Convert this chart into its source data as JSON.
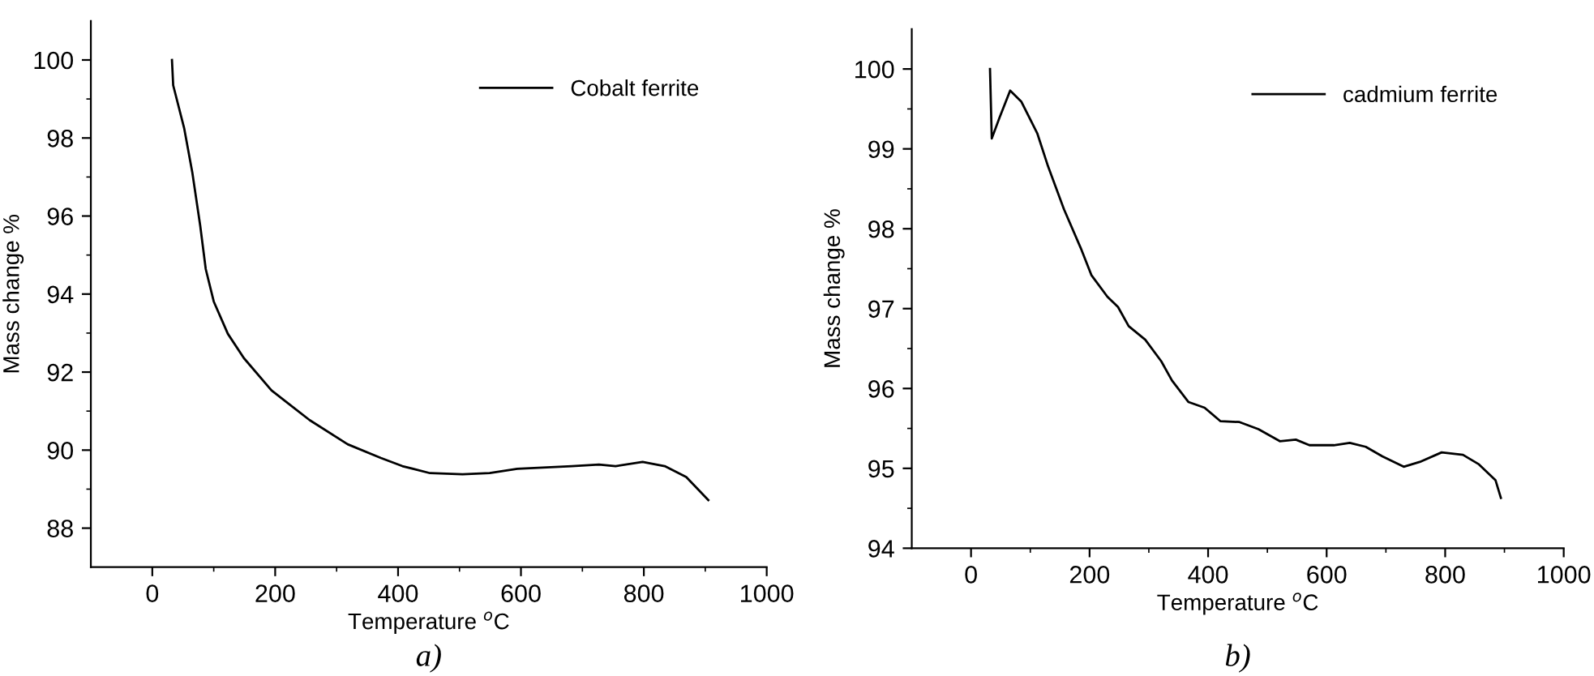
{
  "chart_data": [
    {
      "type": "line",
      "xlabel": "Temperature $^{o}$C",
      "ylabel": "Mass change %",
      "annotations": [
        "a)"
      ],
      "legend": "top right",
      "grid": false,
      "xlim": [
        -100,
        1000
      ],
      "xticks": [
        0,
        200,
        400,
        600,
        800,
        1000
      ],
      "ylim": [
        87,
        101
      ],
      "yticks": [
        88,
        90,
        92,
        94,
        96,
        98,
        100
      ],
      "series": [
        {
          "name": "Cobalt ferrite",
          "color": "#000000",
          "x": [
            32,
            34,
            52,
            65,
            78,
            87,
            100,
            123,
            149,
            194,
            256,
            318,
            372,
            407,
            452,
            505,
            549,
            594,
            683,
            727,
            754,
            798,
            834,
            869,
            905
          ],
          "values": [
            100,
            99.35,
            98.24,
            97.13,
            95.75,
            94.64,
            93.81,
            92.98,
            92.36,
            91.53,
            90.77,
            90.15,
            89.8,
            89.59,
            89.41,
            89.38,
            89.41,
            89.52,
            89.59,
            89.63,
            89.59,
            89.7,
            89.59,
            89.31,
            88.72
          ]
        }
      ]
    },
    {
      "type": "line",
      "xlabel": "Temperature $^{o}$C",
      "ylabel": "Mass change %",
      "annotations": [
        "b)"
      ],
      "legend": "top right",
      "grid": false,
      "xlim": [
        -100,
        1000
      ],
      "xticks": [
        0,
        200,
        400,
        600,
        800,
        1000
      ],
      "ylim": [
        94,
        100.5
      ],
      "yticks": [
        94,
        95,
        96,
        97,
        98,
        99,
        100
      ],
      "series": [
        {
          "name": "cadmium ferrite",
          "color": "#000000",
          "x": [
            32,
            35,
            48,
            66,
            85,
            112,
            130,
            157,
            185,
            203,
            230,
            248,
            266,
            294,
            321,
            339,
            367,
            394,
            421,
            453,
            485,
            521,
            548,
            571,
            612,
            639,
            666,
            694,
            730,
            757,
            794,
            830,
            857,
            885,
            894
          ],
          "values": [
            100,
            99.13,
            99.39,
            99.73,
            99.59,
            99.19,
            98.78,
            98.24,
            97.76,
            97.42,
            97.15,
            97.02,
            96.78,
            96.61,
            96.34,
            96.1,
            95.83,
            95.76,
            95.59,
            95.58,
            95.49,
            95.34,
            95.36,
            95.29,
            95.29,
            95.32,
            95.27,
            95.15,
            95.02,
            95.08,
            95.2,
            95.17,
            95.05,
            94.85,
            94.63
          ]
        }
      ]
    }
  ]
}
